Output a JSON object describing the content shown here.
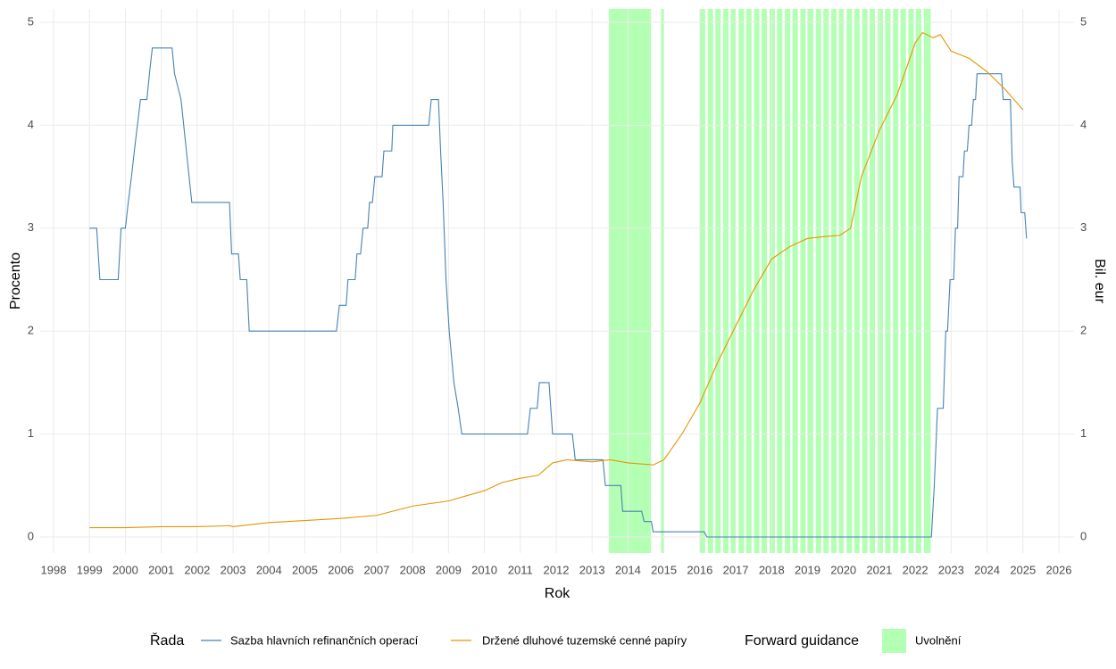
{
  "chart_data": {
    "type": "line",
    "x_label": "Rok",
    "y_label": "Procento",
    "y2_label": "Bil. eur",
    "xlim": [
      1997.627,
      2026.423
    ],
    "xticks": [
      1998,
      1999,
      2000,
      2001,
      2002,
      2003,
      2004,
      2005,
      2006,
      2007,
      2008,
      2009,
      2010,
      2011,
      2012,
      2013,
      2014,
      2015,
      2016,
      2017,
      2018,
      2019,
      2020,
      2021,
      2022,
      2023,
      2024,
      2025,
      2026
    ],
    "ylim": [
      -0.156,
      5.13
    ],
    "yticks": [
      0,
      1,
      2,
      3,
      4,
      5
    ],
    "y2lim": [
      -0.156,
      5.13
    ],
    "y2ticks": [
      0,
      1,
      2,
      3,
      4,
      5
    ],
    "grid": true,
    "legend_title": "Řada",
    "series": [
      {
        "name": "Sazba hlavních refinančních operací",
        "color": "#4682b4",
        "x": [
          1999.0,
          1999.2,
          1999.29,
          1999.8,
          1999.88,
          2000.0,
          2000.08,
          2000.17,
          2000.25,
          2000.42,
          2000.6,
          2000.67,
          2000.75,
          2001.3,
          2001.37,
          2001.55,
          2001.7,
          2001.85,
          2002.9,
          2002.96,
          2003.15,
          2003.2,
          2003.38,
          2003.45,
          2005.88,
          2005.96,
          2006.15,
          2006.2,
          2006.4,
          2006.45,
          2006.55,
          2006.62,
          2006.75,
          2006.8,
          2006.88,
          2006.95,
          2007.15,
          2007.2,
          2007.42,
          2007.45,
          2008.45,
          2008.52,
          2008.72,
          2008.78,
          2008.85,
          2008.93,
          2009.02,
          2009.15,
          2009.27,
          2009.37,
          2011.2,
          2011.28,
          2011.47,
          2011.53,
          2011.8,
          2011.85,
          2011.9,
          2012.45,
          2012.53,
          2013.3,
          2013.37,
          2013.8,
          2013.85,
          2014.38,
          2014.45,
          2014.65,
          2014.7,
          2016.12,
          2016.2,
          2022.45,
          2022.53,
          2022.62,
          2022.78,
          2022.85,
          2022.9,
          2022.97,
          2023.07,
          2023.12,
          2023.18,
          2023.22,
          2023.33,
          2023.37,
          2023.45,
          2023.5,
          2023.57,
          2023.62,
          2023.68,
          2023.72,
          2024.4,
          2024.45,
          2024.65,
          2024.7,
          2024.75,
          2024.92,
          2024.95,
          2025.05,
          2025.1
        ],
        "values": [
          3.0,
          3.0,
          2.5,
          2.5,
          3.0,
          3.0,
          3.25,
          3.5,
          3.75,
          4.25,
          4.25,
          4.5,
          4.75,
          4.75,
          4.5,
          4.25,
          3.75,
          3.25,
          3.25,
          2.75,
          2.75,
          2.5,
          2.5,
          2.0,
          2.0,
          2.25,
          2.25,
          2.5,
          2.5,
          2.75,
          2.75,
          3.0,
          3.0,
          3.25,
          3.25,
          3.5,
          3.5,
          3.75,
          3.75,
          4.0,
          4.0,
          4.25,
          4.25,
          3.75,
          3.25,
          2.5,
          2.0,
          1.5,
          1.25,
          1.0,
          1.0,
          1.25,
          1.25,
          1.5,
          1.5,
          1.25,
          1.0,
          1.0,
          0.75,
          0.75,
          0.5,
          0.5,
          0.25,
          0.25,
          0.15,
          0.15,
          0.05,
          0.05,
          0.0,
          0.0,
          0.5,
          1.25,
          1.25,
          2.0,
          2.0,
          2.5,
          2.5,
          3.0,
          3.0,
          3.5,
          3.5,
          3.75,
          3.75,
          4.0,
          4.0,
          4.25,
          4.25,
          4.5,
          4.5,
          4.25,
          4.25,
          3.65,
          3.4,
          3.4,
          3.15,
          3.15,
          2.9
        ]
      },
      {
        "name": "Držené dluhové tuzemské cenné papíry",
        "color": "#e69500",
        "axis": "y2",
        "x": [
          1999.0,
          2000.0,
          2001.0,
          2002.0,
          2002.9,
          2003.0,
          2004.0,
          2005.0,
          2006.0,
          2007.0,
          2008.0,
          2009.0,
          2010.0,
          2010.5,
          2011.0,
          2011.5,
          2011.9,
          2012.3,
          2013.0,
          2013.5,
          2014.0,
          2014.7,
          2015.0,
          2015.5,
          2016.0,
          2016.5,
          2017.0,
          2017.5,
          2018.0,
          2018.5,
          2019.0,
          2019.5,
          2019.9,
          2020.2,
          2020.5,
          2021.0,
          2021.5,
          2022.0,
          2022.2,
          2022.5,
          2022.7,
          2023.0,
          2023.5,
          2024.0,
          2024.5,
          2025.0
        ],
        "values": [
          0.09,
          0.09,
          0.1,
          0.1,
          0.11,
          0.1,
          0.14,
          0.16,
          0.18,
          0.21,
          0.3,
          0.35,
          0.45,
          0.53,
          0.57,
          0.6,
          0.72,
          0.75,
          0.73,
          0.75,
          0.72,
          0.7,
          0.75,
          1.0,
          1.3,
          1.7,
          2.05,
          2.4,
          2.7,
          2.82,
          2.9,
          2.92,
          2.93,
          3.0,
          3.5,
          3.95,
          4.3,
          4.8,
          4.9,
          4.85,
          4.88,
          4.72,
          4.65,
          4.52,
          4.35,
          4.15
        ]
      }
    ],
    "shading": {
      "title": "Forward guidance",
      "name": "Uvolnění",
      "color": "#b3ffb3",
      "regions": [
        [
          2013.47,
          2014.64
        ],
        [
          2014.92,
          2015.0
        ],
        [
          2016.0,
          2016.15
        ],
        [
          2016.22,
          2016.37
        ],
        [
          2016.43,
          2016.58
        ],
        [
          2016.65,
          2016.8
        ],
        [
          2016.86,
          2017.01
        ],
        [
          2017.08,
          2017.23
        ],
        [
          2017.29,
          2017.44
        ],
        [
          2017.51,
          2017.66
        ],
        [
          2017.72,
          2017.87
        ],
        [
          2017.94,
          2018.09
        ],
        [
          2018.15,
          2018.3
        ],
        [
          2018.37,
          2018.52
        ],
        [
          2018.58,
          2018.73
        ],
        [
          2018.8,
          2018.95
        ],
        [
          2019.01,
          2019.16
        ],
        [
          2019.23,
          2019.38
        ],
        [
          2019.44,
          2019.59
        ],
        [
          2019.66,
          2019.81
        ],
        [
          2019.87,
          2020.02
        ],
        [
          2020.09,
          2020.24
        ],
        [
          2020.3,
          2020.45
        ],
        [
          2020.52,
          2020.67
        ],
        [
          2020.73,
          2020.88
        ],
        [
          2020.95,
          2021.1
        ],
        [
          2021.16,
          2021.31
        ],
        [
          2021.38,
          2021.53
        ],
        [
          2021.59,
          2021.74
        ],
        [
          2021.81,
          2021.96
        ],
        [
          2022.02,
          2022.17
        ],
        [
          2022.24,
          2022.43
        ]
      ]
    }
  }
}
